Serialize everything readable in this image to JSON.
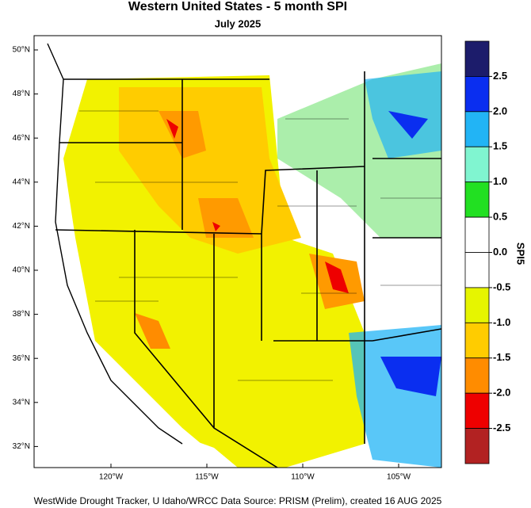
{
  "map": {
    "title": "Western United States - 5 month SPI",
    "subtitle": "July 2025",
    "lat_ticks": [
      {
        "value": 50,
        "label": "50°N"
      },
      {
        "value": 48,
        "label": "48°N"
      },
      {
        "value": 46,
        "label": "46°N"
      },
      {
        "value": 44,
        "label": "44°N"
      },
      {
        "value": 42,
        "label": "42°N"
      },
      {
        "value": 40,
        "label": "40°N"
      },
      {
        "value": 38,
        "label": "38°N"
      },
      {
        "value": 36,
        "label": "36°N"
      },
      {
        "value": 34,
        "label": "34°N"
      },
      {
        "value": 32,
        "label": "32°N"
      }
    ],
    "lon_ticks": [
      {
        "value": -120,
        "label": "120°W"
      },
      {
        "value": -115,
        "label": "115°W"
      },
      {
        "value": -110,
        "label": "110°W"
      },
      {
        "value": -105,
        "label": "105°W"
      }
    ],
    "colorbar": {
      "title": "SPI5",
      "levels": [
        2.5,
        {
          "value": 2,
          "label": "2.0"
        },
        1.5,
        {
          "value": 1,
          "label": "1.0"
        },
        0.5,
        {
          "value": 0,
          "label": "0.0"
        },
        -0.5,
        {
          "value": -1,
          "label": "-1.0"
        },
        -1.5,
        {
          "value": -2,
          "label": "-2.0"
        },
        -2.5
      ],
      "colors": [
        "#1c1c6b",
        "#0a2ef0",
        "#22b4f5",
        "#80f5d0",
        "#22e022",
        "#ffffff",
        "#ffffff",
        "#e6f500",
        "#ffcc00",
        "#ff8c00",
        "#ee0000",
        "#b22222"
      ]
    },
    "footer": "WestWide Drought Tracker, U Idaho/WRCC Data Source: PRISM (Prelim), created 16 AUG 2025"
  }
}
